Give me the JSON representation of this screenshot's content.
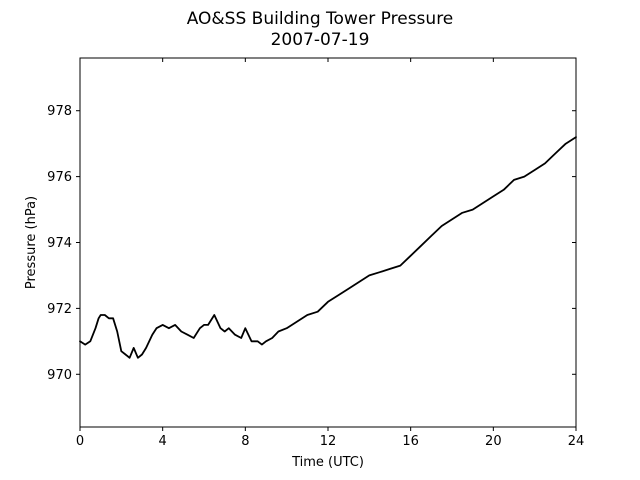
{
  "chart_data": {
    "type": "line",
    "title": "AO&SS Building Tower Pressure",
    "subtitle": "2007-07-19",
    "xlabel": "Time (UTC)",
    "ylabel": "Pressure (hPa)",
    "xlim": [
      0,
      24
    ],
    "ylim": [
      968.4,
      979.6
    ],
    "xticks": [
      0,
      4,
      8,
      12,
      16,
      20,
      24
    ],
    "yticks": [
      970,
      972,
      974,
      976,
      978
    ],
    "grid": false,
    "legend": "none",
    "line_color": "#000000",
    "series": [
      {
        "x": [
          0.0,
          0.25,
          0.5,
          0.75,
          0.9,
          1.0,
          1.2,
          1.4,
          1.6,
          1.8,
          2.0,
          2.2,
          2.4,
          2.6,
          2.8,
          3.0,
          3.2,
          3.5,
          3.7,
          4.0,
          4.3,
          4.6,
          4.9,
          5.2,
          5.5,
          5.8,
          6.0,
          6.2,
          6.5,
          6.8,
          7.0,
          7.2,
          7.5,
          7.8,
          8.0,
          8.3,
          8.6,
          8.8,
          9.0,
          9.3,
          9.6,
          10.0,
          10.5,
          11.0,
          11.5,
          12.0,
          12.5,
          13.0,
          13.5,
          14.0,
          14.5,
          15.0,
          15.5,
          16.0,
          16.5,
          17.0,
          17.5,
          18.0,
          18.5,
          19.0,
          19.5,
          20.0,
          20.5,
          21.0,
          21.5,
          22.0,
          22.5,
          23.0,
          23.5,
          24.0
        ],
        "y": [
          971.0,
          970.9,
          971.0,
          971.4,
          971.7,
          971.8,
          971.8,
          971.7,
          971.7,
          971.3,
          970.7,
          970.6,
          970.5,
          970.8,
          970.5,
          970.6,
          970.8,
          971.2,
          971.4,
          971.5,
          971.4,
          971.5,
          971.3,
          971.2,
          971.1,
          971.4,
          971.5,
          971.5,
          971.8,
          971.4,
          971.3,
          971.4,
          971.2,
          971.1,
          971.4,
          971.0,
          971.0,
          970.9,
          971.0,
          971.1,
          971.3,
          971.4,
          971.6,
          971.8,
          971.9,
          972.2,
          972.4,
          972.6,
          972.8,
          973.0,
          973.1,
          973.2,
          973.3,
          973.6,
          973.9,
          974.2,
          974.5,
          974.7,
          974.9,
          975.0,
          975.2,
          975.4,
          975.6,
          975.9,
          976.0,
          976.2,
          976.4,
          976.7,
          977.0,
          977.2
        ]
      }
    ]
  }
}
